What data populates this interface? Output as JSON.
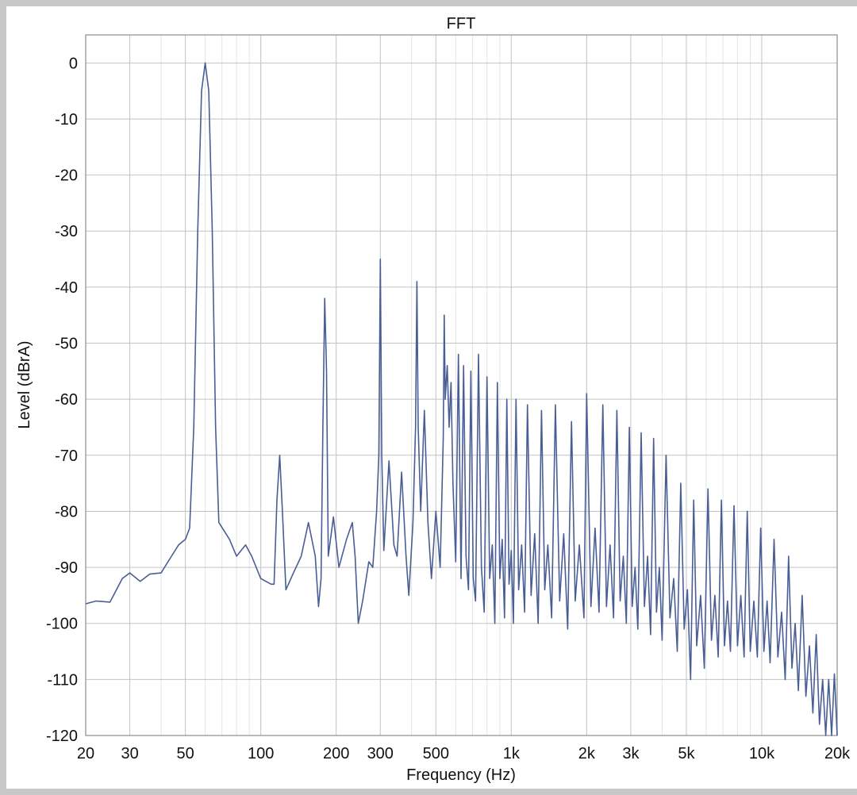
{
  "chart_data": {
    "type": "line",
    "title": "FFT",
    "xlabel": "Frequency (Hz)",
    "ylabel": "Level (dBrA)",
    "x_scale": "log",
    "xlim": [
      20,
      20000
    ],
    "ylim": [
      -120,
      5
    ],
    "grid": true,
    "line_color": "#4a5e96",
    "x_ticks": [
      {
        "v": 20,
        "label": "20"
      },
      {
        "v": 30,
        "label": "30"
      },
      {
        "v": 50,
        "label": "50"
      },
      {
        "v": 100,
        "label": "100"
      },
      {
        "v": 200,
        "label": "200"
      },
      {
        "v": 300,
        "label": "300"
      },
      {
        "v": 500,
        "label": "500"
      },
      {
        "v": 1000,
        "label": "1k"
      },
      {
        "v": 2000,
        "label": "2k"
      },
      {
        "v": 3000,
        "label": "3k"
      },
      {
        "v": 5000,
        "label": "5k"
      },
      {
        "v": 10000,
        "label": "10k"
      },
      {
        "v": 20000,
        "label": "20k"
      }
    ],
    "y_ticks": [
      {
        "v": 0,
        "label": "0"
      },
      {
        "v": -10,
        "label": "-10"
      },
      {
        "v": -20,
        "label": "-20"
      },
      {
        "v": -30,
        "label": "-30"
      },
      {
        "v": -40,
        "label": "-40"
      },
      {
        "v": -50,
        "label": "-50"
      },
      {
        "v": -60,
        "label": "-60"
      },
      {
        "v": -70,
        "label": "-70"
      },
      {
        "v": -80,
        "label": "-80"
      },
      {
        "v": -90,
        "label": "-90"
      },
      {
        "v": -100,
        "label": "-100"
      },
      {
        "v": -110,
        "label": "-110"
      },
      {
        "v": -120,
        "label": "-120"
      }
    ],
    "series": [
      {
        "points": [
          [
            20,
            -96.5
          ],
          [
            22,
            -96
          ],
          [
            25,
            -96.2
          ],
          [
            28,
            -92
          ],
          [
            30,
            -91
          ],
          [
            33,
            -92.5
          ],
          [
            36,
            -91.2
          ],
          [
            40,
            -91
          ],
          [
            44,
            -88
          ],
          [
            47,
            -86
          ],
          [
            50,
            -85
          ],
          [
            52,
            -83
          ],
          [
            54,
            -65
          ],
          [
            56,
            -30
          ],
          [
            58,
            -5
          ],
          [
            60,
            0
          ],
          [
            62,
            -5
          ],
          [
            64,
            -30
          ],
          [
            66,
            -65
          ],
          [
            68,
            -82
          ],
          [
            75,
            -85
          ],
          [
            80,
            -88
          ],
          [
            87,
            -86
          ],
          [
            92,
            -88
          ],
          [
            100,
            -92
          ],
          [
            110,
            -93
          ],
          [
            113,
            -93
          ],
          [
            116,
            -78
          ],
          [
            119,
            -70
          ],
          [
            122,
            -80
          ],
          [
            126,
            -94
          ],
          [
            135,
            -91
          ],
          [
            145,
            -88
          ],
          [
            155,
            -82
          ],
          [
            165,
            -88
          ],
          [
            170,
            -97
          ],
          [
            174,
            -92
          ],
          [
            177,
            -65
          ],
          [
            180,
            -42
          ],
          [
            183,
            -55
          ],
          [
            186,
            -88
          ],
          [
            195,
            -81
          ],
          [
            205,
            -90
          ],
          [
            220,
            -85
          ],
          [
            232,
            -82
          ],
          [
            238,
            -88
          ],
          [
            245,
            -100
          ],
          [
            255,
            -96
          ],
          [
            270,
            -89
          ],
          [
            280,
            -90
          ],
          [
            290,
            -80
          ],
          [
            296,
            -70
          ],
          [
            300,
            -35
          ],
          [
            304,
            -70
          ],
          [
            310,
            -87
          ],
          [
            325,
            -71
          ],
          [
            340,
            -86
          ],
          [
            350,
            -88
          ],
          [
            365,
            -73
          ],
          [
            380,
            -88
          ],
          [
            390,
            -95
          ],
          [
            405,
            -82
          ],
          [
            415,
            -65
          ],
          [
            420,
            -39
          ],
          [
            425,
            -65
          ],
          [
            435,
            -80
          ],
          [
            450,
            -62
          ],
          [
            465,
            -82
          ],
          [
            480,
            -92
          ],
          [
            500,
            -80
          ],
          [
            520,
            -90
          ],
          [
            535,
            -67
          ],
          [
            540,
            -45
          ],
          [
            545,
            -60
          ],
          [
            555,
            -54
          ],
          [
            565,
            -65
          ],
          [
            575,
            -57
          ],
          [
            585,
            -75
          ],
          [
            600,
            -89
          ],
          [
            615,
            -52
          ],
          [
            630,
            -92
          ],
          [
            645,
            -54
          ],
          [
            660,
            -88
          ],
          [
            675,
            -94
          ],
          [
            690,
            -55
          ],
          [
            705,
            -92
          ],
          [
            720,
            -96
          ],
          [
            740,
            -52
          ],
          [
            760,
            -90
          ],
          [
            780,
            -98
          ],
          [
            800,
            -56
          ],
          [
            820,
            -92
          ],
          [
            840,
            -86
          ],
          [
            860,
            -100
          ],
          [
            880,
            -57
          ],
          [
            900,
            -92
          ],
          [
            920,
            -85
          ],
          [
            940,
            -99
          ],
          [
            960,
            -60
          ],
          [
            980,
            -93
          ],
          [
            1000,
            -87
          ],
          [
            1020,
            -100
          ],
          [
            1045,
            -60
          ],
          [
            1070,
            -94
          ],
          [
            1100,
            -86
          ],
          [
            1130,
            -98
          ],
          [
            1160,
            -61
          ],
          [
            1200,
            -95
          ],
          [
            1240,
            -84
          ],
          [
            1280,
            -100
          ],
          [
            1320,
            -62
          ],
          [
            1360,
            -94
          ],
          [
            1400,
            -86
          ],
          [
            1450,
            -99
          ],
          [
            1500,
            -61
          ],
          [
            1560,
            -96
          ],
          [
            1620,
            -84
          ],
          [
            1680,
            -101
          ],
          [
            1740,
            -64
          ],
          [
            1800,
            -96
          ],
          [
            1870,
            -86
          ],
          [
            1950,
            -99
          ],
          [
            2000,
            -59
          ],
          [
            2080,
            -97
          ],
          [
            2160,
            -83
          ],
          [
            2240,
            -98
          ],
          [
            2320,
            -61
          ],
          [
            2400,
            -97
          ],
          [
            2480,
            -86
          ],
          [
            2560,
            -99
          ],
          [
            2640,
            -62
          ],
          [
            2720,
            -96
          ],
          [
            2800,
            -88
          ],
          [
            2880,
            -100
          ],
          [
            2960,
            -65
          ],
          [
            3040,
            -97
          ],
          [
            3120,
            -90
          ],
          [
            3200,
            -101
          ],
          [
            3300,
            -66
          ],
          [
            3400,
            -97
          ],
          [
            3500,
            -88
          ],
          [
            3600,
            -102
          ],
          [
            3700,
            -67
          ],
          [
            3800,
            -98
          ],
          [
            3900,
            -90
          ],
          [
            4000,
            -103
          ],
          [
            4150,
            -70
          ],
          [
            4300,
            -99
          ],
          [
            4450,
            -92
          ],
          [
            4600,
            -105
          ],
          [
            4750,
            -75
          ],
          [
            4900,
            -101
          ],
          [
            5050,
            -94
          ],
          [
            5200,
            -110
          ],
          [
            5350,
            -78
          ],
          [
            5500,
            -104
          ],
          [
            5700,
            -95
          ],
          [
            5900,
            -108
          ],
          [
            6100,
            -76
          ],
          [
            6300,
            -103
          ],
          [
            6500,
            -95
          ],
          [
            6700,
            -106
          ],
          [
            6900,
            -78
          ],
          [
            7100,
            -104
          ],
          [
            7300,
            -96
          ],
          [
            7500,
            -105
          ],
          [
            7750,
            -79
          ],
          [
            8000,
            -104
          ],
          [
            8250,
            -95
          ],
          [
            8500,
            -106
          ],
          [
            8750,
            -80
          ],
          [
            9000,
            -105
          ],
          [
            9300,
            -96
          ],
          [
            9600,
            -106
          ],
          [
            9900,
            -83
          ],
          [
            10200,
            -105
          ],
          [
            10500,
            -96
          ],
          [
            10800,
            -107
          ],
          [
            11200,
            -85
          ],
          [
            11600,
            -106
          ],
          [
            12000,
            -98
          ],
          [
            12400,
            -110
          ],
          [
            12800,
            -88
          ],
          [
            13200,
            -108
          ],
          [
            13600,
            -100
          ],
          [
            14000,
            -112
          ],
          [
            14500,
            -95
          ],
          [
            15000,
            -113
          ],
          [
            15500,
            -104
          ],
          [
            16000,
            -116
          ],
          [
            16500,
            -102
          ],
          [
            17000,
            -118
          ],
          [
            17500,
            -110
          ],
          [
            18000,
            -120
          ],
          [
            18500,
            -110
          ],
          [
            19000,
            -120
          ],
          [
            19500,
            -109
          ],
          [
            20000,
            -120
          ]
        ]
      }
    ]
  }
}
